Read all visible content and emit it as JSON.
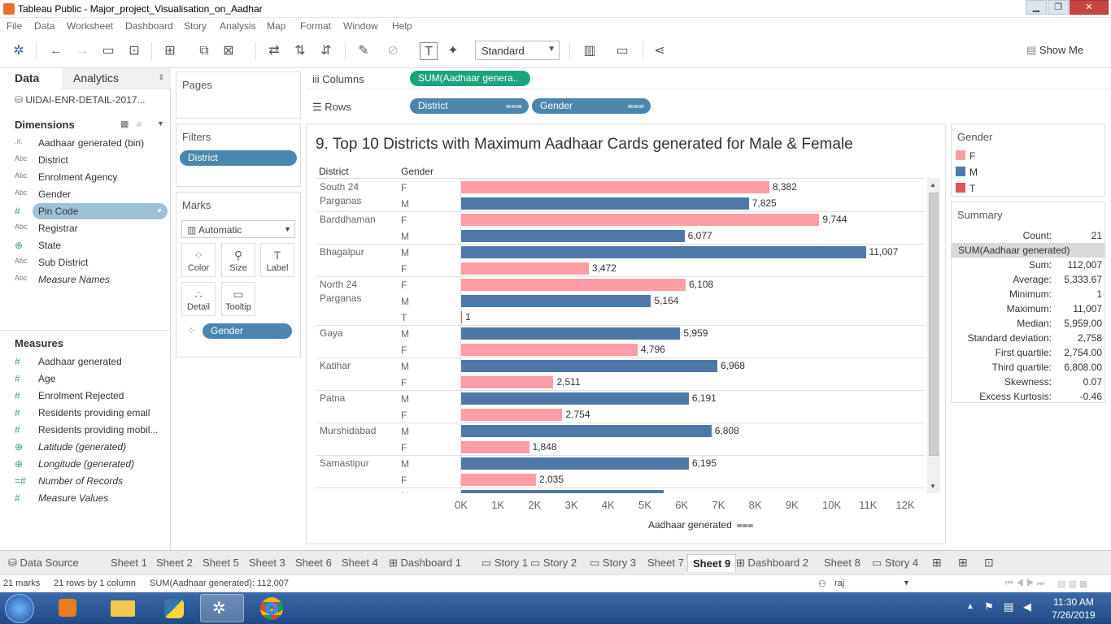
{
  "window": {
    "title": "Tableau Public - Major_project_Visualisation_on_Aadhar"
  },
  "menu": [
    "File",
    "Data",
    "Worksheet",
    "Dashboard",
    "Story",
    "Analysis",
    "Map",
    "Format",
    "Window",
    "Help"
  ],
  "toolbar": {
    "fit_select": "Standard",
    "show_me": "Show Me"
  },
  "datapane": {
    "tab_data": "Data",
    "tab_analytics": "Analytics",
    "datasource": "UIDAI-ENR-DETAIL-2017...",
    "dimensions_label": "Dimensions",
    "dimensions": [
      {
        "icon": ".ıl.",
        "name": "Aadhaar generated (bin)"
      },
      {
        "icon": "Abc",
        "name": "District"
      },
      {
        "icon": "Abc",
        "name": "Enrolment Agency"
      },
      {
        "icon": "Abc",
        "name": "Gender"
      },
      {
        "icon": "#",
        "name": "Pin Code"
      },
      {
        "icon": "Abc",
        "name": "Registrar"
      },
      {
        "icon": "⊕",
        "name": "State"
      },
      {
        "icon": "Abc",
        "name": "Sub District"
      },
      {
        "icon": "Abc",
        "name": "Measure Names"
      }
    ],
    "measures_label": "Measures",
    "measures": [
      {
        "icon": "#",
        "name": "Aadhaar generated"
      },
      {
        "icon": "#",
        "name": "Age"
      },
      {
        "icon": "#",
        "name": "Enrolment Rejected"
      },
      {
        "icon": "#",
        "name": "Residents providing email"
      },
      {
        "icon": "#",
        "name": "Residents providing mobil..."
      },
      {
        "icon": "⊕",
        "name": "Latitude (generated)"
      },
      {
        "icon": "⊕",
        "name": "Longitude (generated)"
      },
      {
        "icon": "=#",
        "name": "Number of Records"
      },
      {
        "icon": "#",
        "name": "Measure Values"
      }
    ]
  },
  "shelves": {
    "pages": "Pages",
    "filters": "Filters",
    "filter_pill": "District",
    "marks": "Marks",
    "marks_type": "Automatic",
    "marks_buttons": [
      "Color",
      "Size",
      "Label",
      "Detail",
      "Tooltip"
    ],
    "marks_pill": "Gender",
    "columns_label": "Columns",
    "columns_pill": "SUM(Aadhaar genera..",
    "rows_label": "Rows",
    "rows_pills": [
      "District",
      "Gender"
    ]
  },
  "chart_data": {
    "type": "bar",
    "title": "9. Top 10 Districts with Maximum Aadhaar Cards generated for Male & Female",
    "row_headers": [
      "District",
      "Gender"
    ],
    "xlabel": "Aadhaar generated",
    "xlim": [
      0,
      12500
    ],
    "ticks": [
      "0K",
      "1K",
      "2K",
      "3K",
      "4K",
      "5K",
      "6K",
      "7K",
      "8K",
      "9K",
      "10K",
      "11K",
      "12K"
    ],
    "groups": [
      {
        "district": [
          "South 24",
          "Parganas"
        ],
        "bars": [
          {
            "gender": "F",
            "value": 8382,
            "label": "8,382"
          },
          {
            "gender": "M",
            "value": 7825,
            "label": "7,825"
          }
        ]
      },
      {
        "district": [
          "Barddhaman"
        ],
        "bars": [
          {
            "gender": "F",
            "value": 9744,
            "label": "9,744"
          },
          {
            "gender": "M",
            "value": 6077,
            "label": "6,077"
          }
        ]
      },
      {
        "district": [
          "Bhagalpur"
        ],
        "bars": [
          {
            "gender": "M",
            "value": 11007,
            "label": "11,007"
          },
          {
            "gender": "F",
            "value": 3472,
            "label": "3,472"
          }
        ]
      },
      {
        "district": [
          "North 24",
          "Parganas"
        ],
        "bars": [
          {
            "gender": "F",
            "value": 6108,
            "label": "6,108"
          },
          {
            "gender": "M",
            "value": 5164,
            "label": "5,164"
          },
          {
            "gender": "T",
            "value": 1,
            "label": "1"
          }
        ]
      },
      {
        "district": [
          "Gaya"
        ],
        "bars": [
          {
            "gender": "M",
            "value": 5959,
            "label": "5,959"
          },
          {
            "gender": "F",
            "value": 4796,
            "label": "4,796"
          }
        ]
      },
      {
        "district": [
          "Katihar"
        ],
        "bars": [
          {
            "gender": "M",
            "value": 6968,
            "label": "6,968"
          },
          {
            "gender": "F",
            "value": 2511,
            "label": "2,511"
          }
        ]
      },
      {
        "district": [
          "Patna"
        ],
        "bars": [
          {
            "gender": "M",
            "value": 6191,
            "label": "6,191"
          },
          {
            "gender": "F",
            "value": 2754,
            "label": "2,754"
          }
        ]
      },
      {
        "district": [
          "Murshidabad"
        ],
        "bars": [
          {
            "gender": "M",
            "value": 6808,
            "label": "6,808"
          },
          {
            "gender": "F",
            "value": 1848,
            "label": "1,848"
          }
        ]
      },
      {
        "district": [
          "Samastipur"
        ],
        "bars": [
          {
            "gender": "M",
            "value": 6195,
            "label": "6,195"
          },
          {
            "gender": "F",
            "value": 2035,
            "label": "2,035"
          }
        ]
      },
      {
        "district": [
          ""
        ],
        "bars": [
          {
            "gender": "M",
            "value": 5500,
            "label": ""
          }
        ]
      }
    ],
    "colors": {
      "F": "#ff9da7",
      "M": "#4e79a7",
      "T": "#e15759"
    }
  },
  "legend": {
    "title": "Gender",
    "items": [
      {
        "label": "F",
        "color": "#ff9da7"
      },
      {
        "label": "M",
        "color": "#4e79a7"
      },
      {
        "label": "T",
        "color": "#e15759"
      }
    ]
  },
  "summary": {
    "title": "Summary",
    "count_label": "Count:",
    "count": "21",
    "field": "SUM(Aadhaar generated)",
    "rows": [
      {
        "k": "Sum:",
        "v": "112,007"
      },
      {
        "k": "Average:",
        "v": "5,333.67"
      },
      {
        "k": "Minimum:",
        "v": "1"
      },
      {
        "k": "Maximum:",
        "v": "11,007"
      },
      {
        "k": "Median:",
        "v": "5,959.00"
      },
      {
        "k": "Standard deviation:",
        "v": "2,758"
      },
      {
        "k": "First quartile:",
        "v": "2,754.00"
      },
      {
        "k": "Third quartile:",
        "v": "6,808.00"
      },
      {
        "k": "Skewness:",
        "v": "0.07"
      },
      {
        "k": "Excess Kurtosis:",
        "v": "-0.46"
      }
    ]
  },
  "sheet_tabs": [
    {
      "label": "Data Source",
      "icon": "db"
    },
    {
      "label": "Sheet 1"
    },
    {
      "label": "Sheet 2"
    },
    {
      "label": "Sheet 5"
    },
    {
      "label": "Sheet 3"
    },
    {
      "label": "Sheet 6"
    },
    {
      "label": "Sheet 4"
    },
    {
      "label": "Dashboard 1",
      "icon": "grid"
    },
    {
      "label": "Story 1",
      "icon": "story"
    },
    {
      "label": "Story 2",
      "icon": "story"
    },
    {
      "label": "Story 3",
      "icon": "story"
    },
    {
      "label": "Sheet 7"
    },
    {
      "label": "Sheet 9",
      "active": true
    },
    {
      "label": "Dashboard 2",
      "icon": "grid"
    },
    {
      "label": "Sheet 8"
    },
    {
      "label": "Story 4",
      "icon": "story"
    }
  ],
  "status": {
    "marks": "21 marks",
    "rows": "21 rows by 1 column",
    "sum": "SUM(Aadhaar generated): 112,007",
    "user": "raj"
  },
  "clock": {
    "time": "11:30 AM",
    "date": "7/26/2019"
  }
}
